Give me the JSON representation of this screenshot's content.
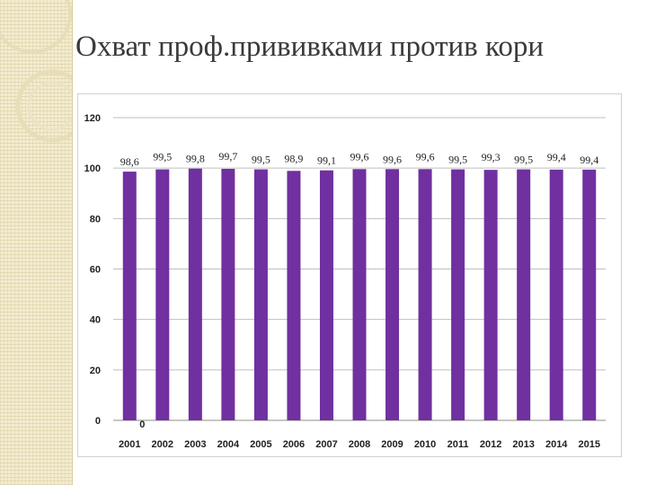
{
  "slide": {
    "title": "Охват проф.прививками против кори"
  },
  "colors": {
    "bar": "#7030a0",
    "grid": "#bfbfbf",
    "axis_text": "#1f1f1f",
    "label_text": "#1f1f1f",
    "strip": "#f3ecd0"
  },
  "chart_data": {
    "type": "bar",
    "title": "",
    "xlabel": "",
    "ylabel": "",
    "ylim": [
      0,
      120
    ],
    "yticks": [
      "0",
      "20",
      "40",
      "60",
      "80",
      "100",
      "120"
    ],
    "grid": true,
    "categories": [
      "2001",
      "2002",
      "2003",
      "2004",
      "2005",
      "2006",
      "2007",
      "2008",
      "2009",
      "2010",
      "2011",
      "2012",
      "2013",
      "2014",
      "2015"
    ],
    "values": [
      98.6,
      99.5,
      99.8,
      99.7,
      99.5,
      98.9,
      99.1,
      99.6,
      99.6,
      99.6,
      99.5,
      99.3,
      99.5,
      99.4,
      99.4
    ],
    "data_labels": [
      "98,6",
      "99,5",
      "99,8",
      "99,7",
      "99,5",
      "98,9",
      "99,1",
      "99,6",
      "99,6",
      "99,6",
      "99,5",
      "99,3",
      "99,5",
      "99,4",
      "99,4"
    ],
    "annotations": [
      {
        "category": "2001",
        "text": "0"
      }
    ]
  }
}
